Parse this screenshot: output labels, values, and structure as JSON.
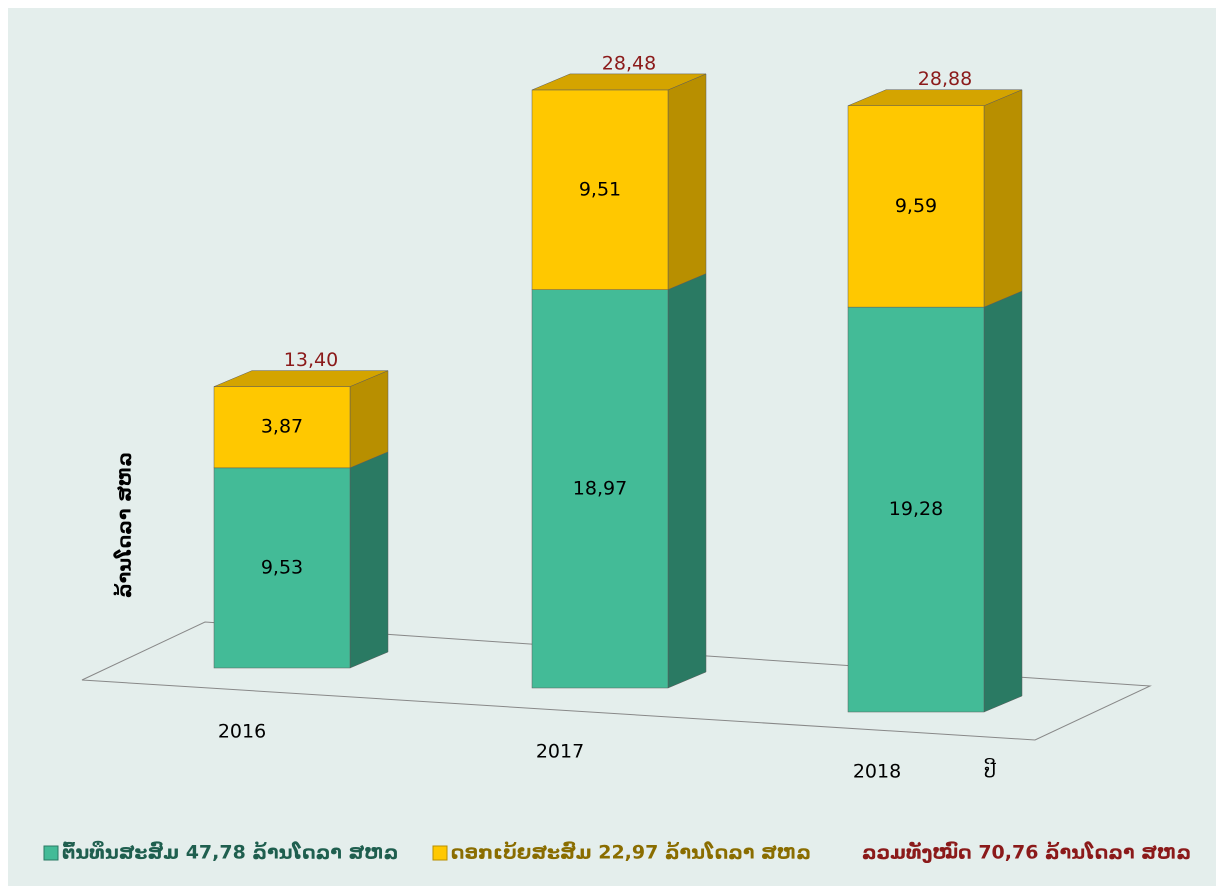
{
  "chart_data": {
    "type": "bar3d_stacked",
    "y_axis_label": "ລ້ານໂດລາ ສຫລ",
    "x_axis_label": "ປີ",
    "categories": [
      "2016",
      "2017",
      "2018"
    ],
    "ylim": [
      0,
      30
    ],
    "series": [
      {
        "name": "ຕົ້ນທຶນສະສົມ 47,78 ລ້ານໂດລາ ສຫລ",
        "color": "#43bb97",
        "values": [
          9.53,
          18.97,
          19.28
        ],
        "value_labels": [
          "9,53",
          "18,97",
          "19,28"
        ]
      },
      {
        "name": "ດອກເບ້ຍສະສົມ 22,97 ລ້ານໂດລາ ສຫລ",
        "color": "#ffc800",
        "values": [
          3.87,
          9.51,
          9.59
        ],
        "value_labels": [
          "3,87",
          "9,51",
          "9,59"
        ]
      }
    ],
    "totals": [
      13.4,
      28.48,
      28.88
    ],
    "total_labels": [
      "13,40",
      "28,48",
      "28,88"
    ],
    "legend_note": "ລວມທັງໝົດ 70,76 ລ້ານໂດລາ ສຫລ"
  }
}
